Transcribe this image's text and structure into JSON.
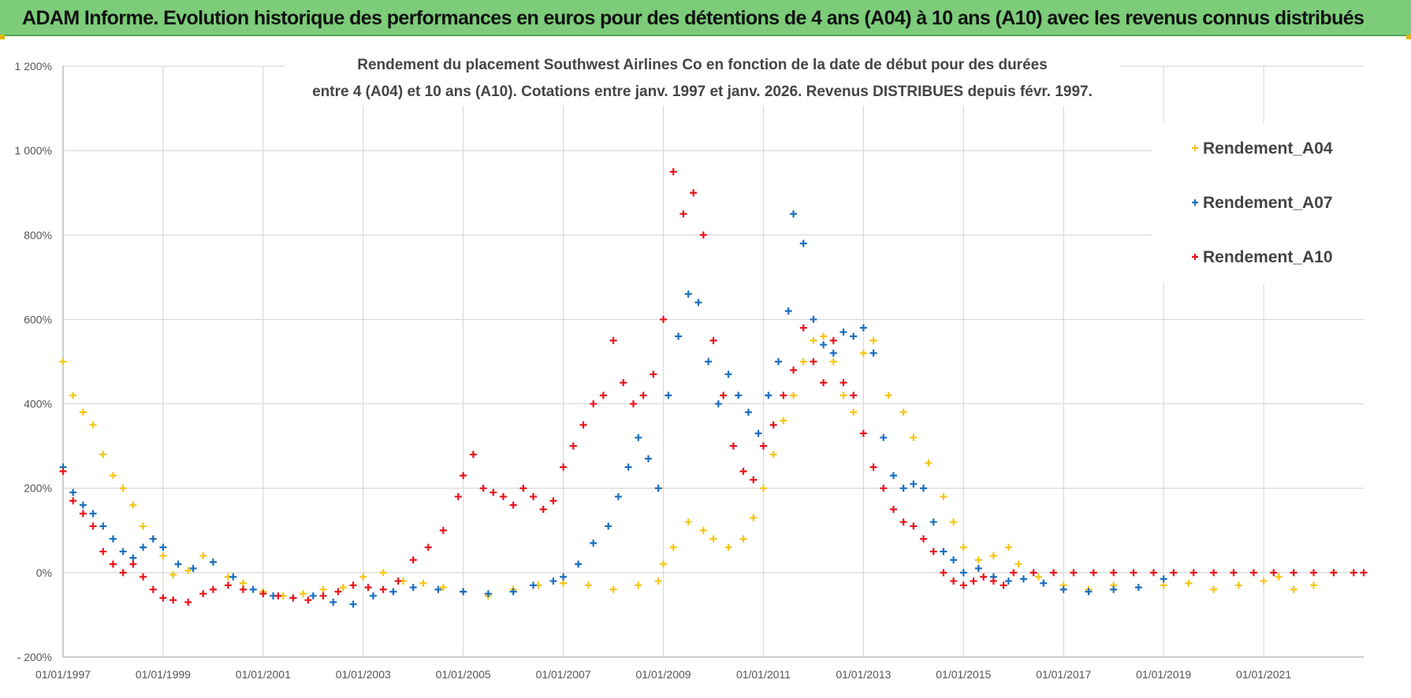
{
  "banner": {
    "title": "ADAM Informe. Evolution historique des performances en euros pour des détentions de 4 ans (A04) à 10 ans (A10) avec les revenus connus distribués"
  },
  "colors": {
    "banner_bg": "#7ccc7a",
    "A04": "#f5c518",
    "A07": "#1a6fbf",
    "A10": "#e8141b",
    "grid": "#d9d9d9"
  },
  "chart_data": {
    "type": "scatter",
    "title_line1": "Rendement du placement Southwest Airlines Co en fonction de la date de début pour des durées",
    "title_line2": "entre 4 (A04) et 10 ans (A10). Cotations entre janv. 1997 et janv. 2026. Revenus DISTRIBUES depuis févr. 1997.",
    "xlabel": "",
    "ylabel": "",
    "ylim": [
      -200,
      1200
    ],
    "xlim": [
      1997.0,
      2023.0
    ],
    "y_ticks": [
      -200,
      0,
      200,
      400,
      600,
      800,
      1000,
      1200
    ],
    "y_tick_labels": [
      "- 200%",
      "0%",
      "200%",
      "400%",
      "600%",
      "800%",
      "1 000%",
      "1 200%"
    ],
    "x_ticks": [
      1997,
      1999,
      2001,
      2003,
      2005,
      2007,
      2009,
      2011,
      2013,
      2015,
      2017,
      2019,
      2021
    ],
    "x_tick_labels": [
      "01/01/1997",
      "01/01/1999",
      "01/01/2001",
      "01/01/2003",
      "01/01/2005",
      "01/01/2007",
      "01/01/2009",
      "01/01/2011",
      "01/01/2013",
      "01/01/2015",
      "01/01/2017",
      "01/01/2019",
      "01/01/2021"
    ],
    "legend_position": "top-right",
    "series": [
      {
        "name": "Rendement_A04",
        "color": "#f5c518",
        "x": [
          1997.0,
          1997.2,
          1997.4,
          1997.6,
          1997.8,
          1998.0,
          1998.2,
          1998.4,
          1998.6,
          1998.8,
          1999.0,
          1999.2,
          1999.5,
          1999.8,
          2000.0,
          2000.3,
          2000.6,
          2001.0,
          2001.4,
          2001.8,
          2002.2,
          2002.6,
          2003.0,
          2003.4,
          2003.8,
          2004.2,
          2004.6,
          2005.0,
          2005.5,
          2006.0,
          2006.5,
          2007.0,
          2007.5,
          2008.0,
          2008.5,
          2008.9,
          2009.0,
          2009.2,
          2009.5,
          2009.8,
          2010.0,
          2010.3,
          2010.6,
          2010.8,
          2011.0,
          2011.2,
          2011.4,
          2011.6,
          2011.8,
          2012.0,
          2012.2,
          2012.4,
          2012.6,
          2012.8,
          2013.0,
          2013.2,
          2013.5,
          2013.8,
          2014.0,
          2014.3,
          2014.6,
          2014.8,
          2015.0,
          2015.3,
          2015.6,
          2015.9,
          2016.1,
          2016.5,
          2017.0,
          2017.5,
          2018.0,
          2018.5,
          2019.0,
          2019.5,
          2020.0,
          2020.5,
          2021.0,
          2021.3,
          2021.6,
          2022.0,
          2022.4
        ],
        "values": [
          500,
          420,
          380,
          350,
          280,
          230,
          200,
          160,
          110,
          80,
          40,
          -5,
          5,
          40,
          25,
          -10,
          -25,
          -45,
          -55,
          -50,
          -40,
          -35,
          -10,
          0,
          -20,
          -25,
          -35,
          -45,
          -55,
          -40,
          -30,
          -25,
          -30,
          -40,
          -30,
          -20,
          20,
          60,
          120,
          100,
          80,
          60,
          80,
          130,
          200,
          280,
          360,
          420,
          500,
          550,
          560,
          500,
          420,
          380,
          520,
          550,
          420,
          380,
          320,
          260,
          180,
          120,
          60,
          30,
          40,
          60,
          20,
          -10,
          -30,
          -40,
          -30,
          -35,
          -30,
          -25,
          -40,
          -30,
          -20,
          -10,
          -40,
          -30,
          0
        ]
      },
      {
        "name": "Rendement_A07",
        "color": "#1a6fbf",
        "x": [
          1997.0,
          1997.2,
          1997.4,
          1997.6,
          1997.8,
          1998.0,
          1998.2,
          1998.4,
          1998.6,
          1998.8,
          1999.0,
          1999.3,
          1999.6,
          2000.0,
          2000.4,
          2000.8,
          2001.2,
          2001.6,
          2002.0,
          2002.4,
          2002.8,
          2003.2,
          2003.6,
          2004.0,
          2004.5,
          2005.0,
          2005.5,
          2006.0,
          2006.4,
          2006.8,
          2007.0,
          2007.3,
          2007.6,
          2007.9,
          2008.1,
          2008.3,
          2008.5,
          2008.7,
          2008.9,
          2009.1,
          2009.3,
          2009.5,
          2009.7,
          2009.9,
          2010.1,
          2010.3,
          2010.5,
          2010.7,
          2010.9,
          2011.1,
          2011.3,
          2011.5,
          2011.6,
          2011.8,
          2012.0,
          2012.2,
          2012.4,
          2012.6,
          2012.8,
          2013.0,
          2013.2,
          2013.4,
          2013.6,
          2013.8,
          2014.0,
          2014.2,
          2014.4,
          2014.6,
          2014.8,
          2015.0,
          2015.3,
          2015.6,
          2015.9,
          2016.2,
          2016.6,
          2017.0,
          2017.5,
          2018.0,
          2018.5,
          2019.0
        ],
        "values": [
          250,
          190,
          160,
          140,
          110,
          80,
          50,
          35,
          60,
          80,
          60,
          20,
          10,
          25,
          -10,
          -40,
          -55,
          -60,
          -55,
          -70,
          -75,
          -55,
          -45,
          -35,
          -40,
          -45,
          -50,
          -45,
          -30,
          -20,
          -10,
          20,
          70,
          110,
          180,
          250,
          320,
          270,
          200,
          420,
          560,
          660,
          640,
          500,
          400,
          470,
          420,
          380,
          330,
          420,
          500,
          620,
          850,
          780,
          600,
          540,
          520,
          570,
          560,
          580,
          520,
          320,
          230,
          200,
          210,
          200,
          120,
          50,
          30,
          0,
          10,
          -10,
          -20,
          -15,
          -25,
          -40,
          -45,
          -40,
          -35,
          -15
        ]
      },
      {
        "name": "Rendement_A10",
        "color": "#e8141b",
        "x": [
          1997.0,
          1997.2,
          1997.4,
          1997.6,
          1997.8,
          1998.0,
          1998.2,
          1998.4,
          1998.6,
          1998.8,
          1999.0,
          1999.2,
          1999.5,
          1999.8,
          2000.0,
          2000.3,
          2000.6,
          2001.0,
          2001.3,
          2001.6,
          2001.9,
          2002.2,
          2002.5,
          2002.8,
          2003.1,
          2003.4,
          2003.7,
          2004.0,
          2004.3,
          2004.6,
          2004.9,
          2005.0,
          2005.2,
          2005.4,
          2005.6,
          2005.8,
          2006.0,
          2006.2,
          2006.4,
          2006.6,
          2006.8,
          2007.0,
          2007.2,
          2007.4,
          2007.6,
          2007.8,
          2008.0,
          2008.2,
          2008.4,
          2008.6,
          2008.8,
          2009.0,
          2009.2,
          2009.4,
          2009.6,
          2009.8,
          2010.0,
          2010.2,
          2010.4,
          2010.6,
          2010.8,
          2011.0,
          2011.2,
          2011.4,
          2011.6,
          2011.8,
          2012.0,
          2012.2,
          2012.4,
          2012.6,
          2012.8,
          2013.0,
          2013.2,
          2013.4,
          2013.6,
          2013.8,
          2014.0,
          2014.2,
          2014.4,
          2014.6,
          2014.8,
          2015.0,
          2015.2,
          2015.4,
          2015.6,
          2015.8,
          2016.0,
          2016.4,
          2016.8,
          2017.2,
          2017.6,
          2018.0,
          2018.4,
          2018.8,
          2019.2,
          2019.6,
          2020.0,
          2020.4,
          2020.8,
          2021.2,
          2021.6,
          2022.0,
          2022.4,
          2022.8,
          2023.0
        ],
        "values": [
          240,
          170,
          140,
          110,
          50,
          20,
          0,
          20,
          -10,
          -40,
          -60,
          -65,
          -70,
          -50,
          -40,
          -30,
          -40,
          -50,
          -55,
          -60,
          -65,
          -55,
          -45,
          -30,
          -35,
          -40,
          -20,
          30,
          60,
          100,
          180,
          230,
          280,
          200,
          190,
          180,
          160,
          200,
          180,
          150,
          170,
          250,
          300,
          350,
          400,
          420,
          550,
          450,
          400,
          420,
          470,
          600,
          950,
          850,
          900,
          800,
          550,
          420,
          300,
          240,
          220,
          300,
          350,
          420,
          480,
          580,
          500,
          450,
          550,
          450,
          420,
          330,
          250,
          200,
          150,
          120,
          110,
          80,
          50,
          0,
          -20,
          -30,
          -20,
          -10,
          -20,
          -30,
          0,
          0,
          0,
          0,
          0,
          0,
          0,
          0,
          0,
          0,
          0,
          0,
          0,
          0,
          0,
          0,
          0,
          0,
          0
        ]
      }
    ]
  }
}
